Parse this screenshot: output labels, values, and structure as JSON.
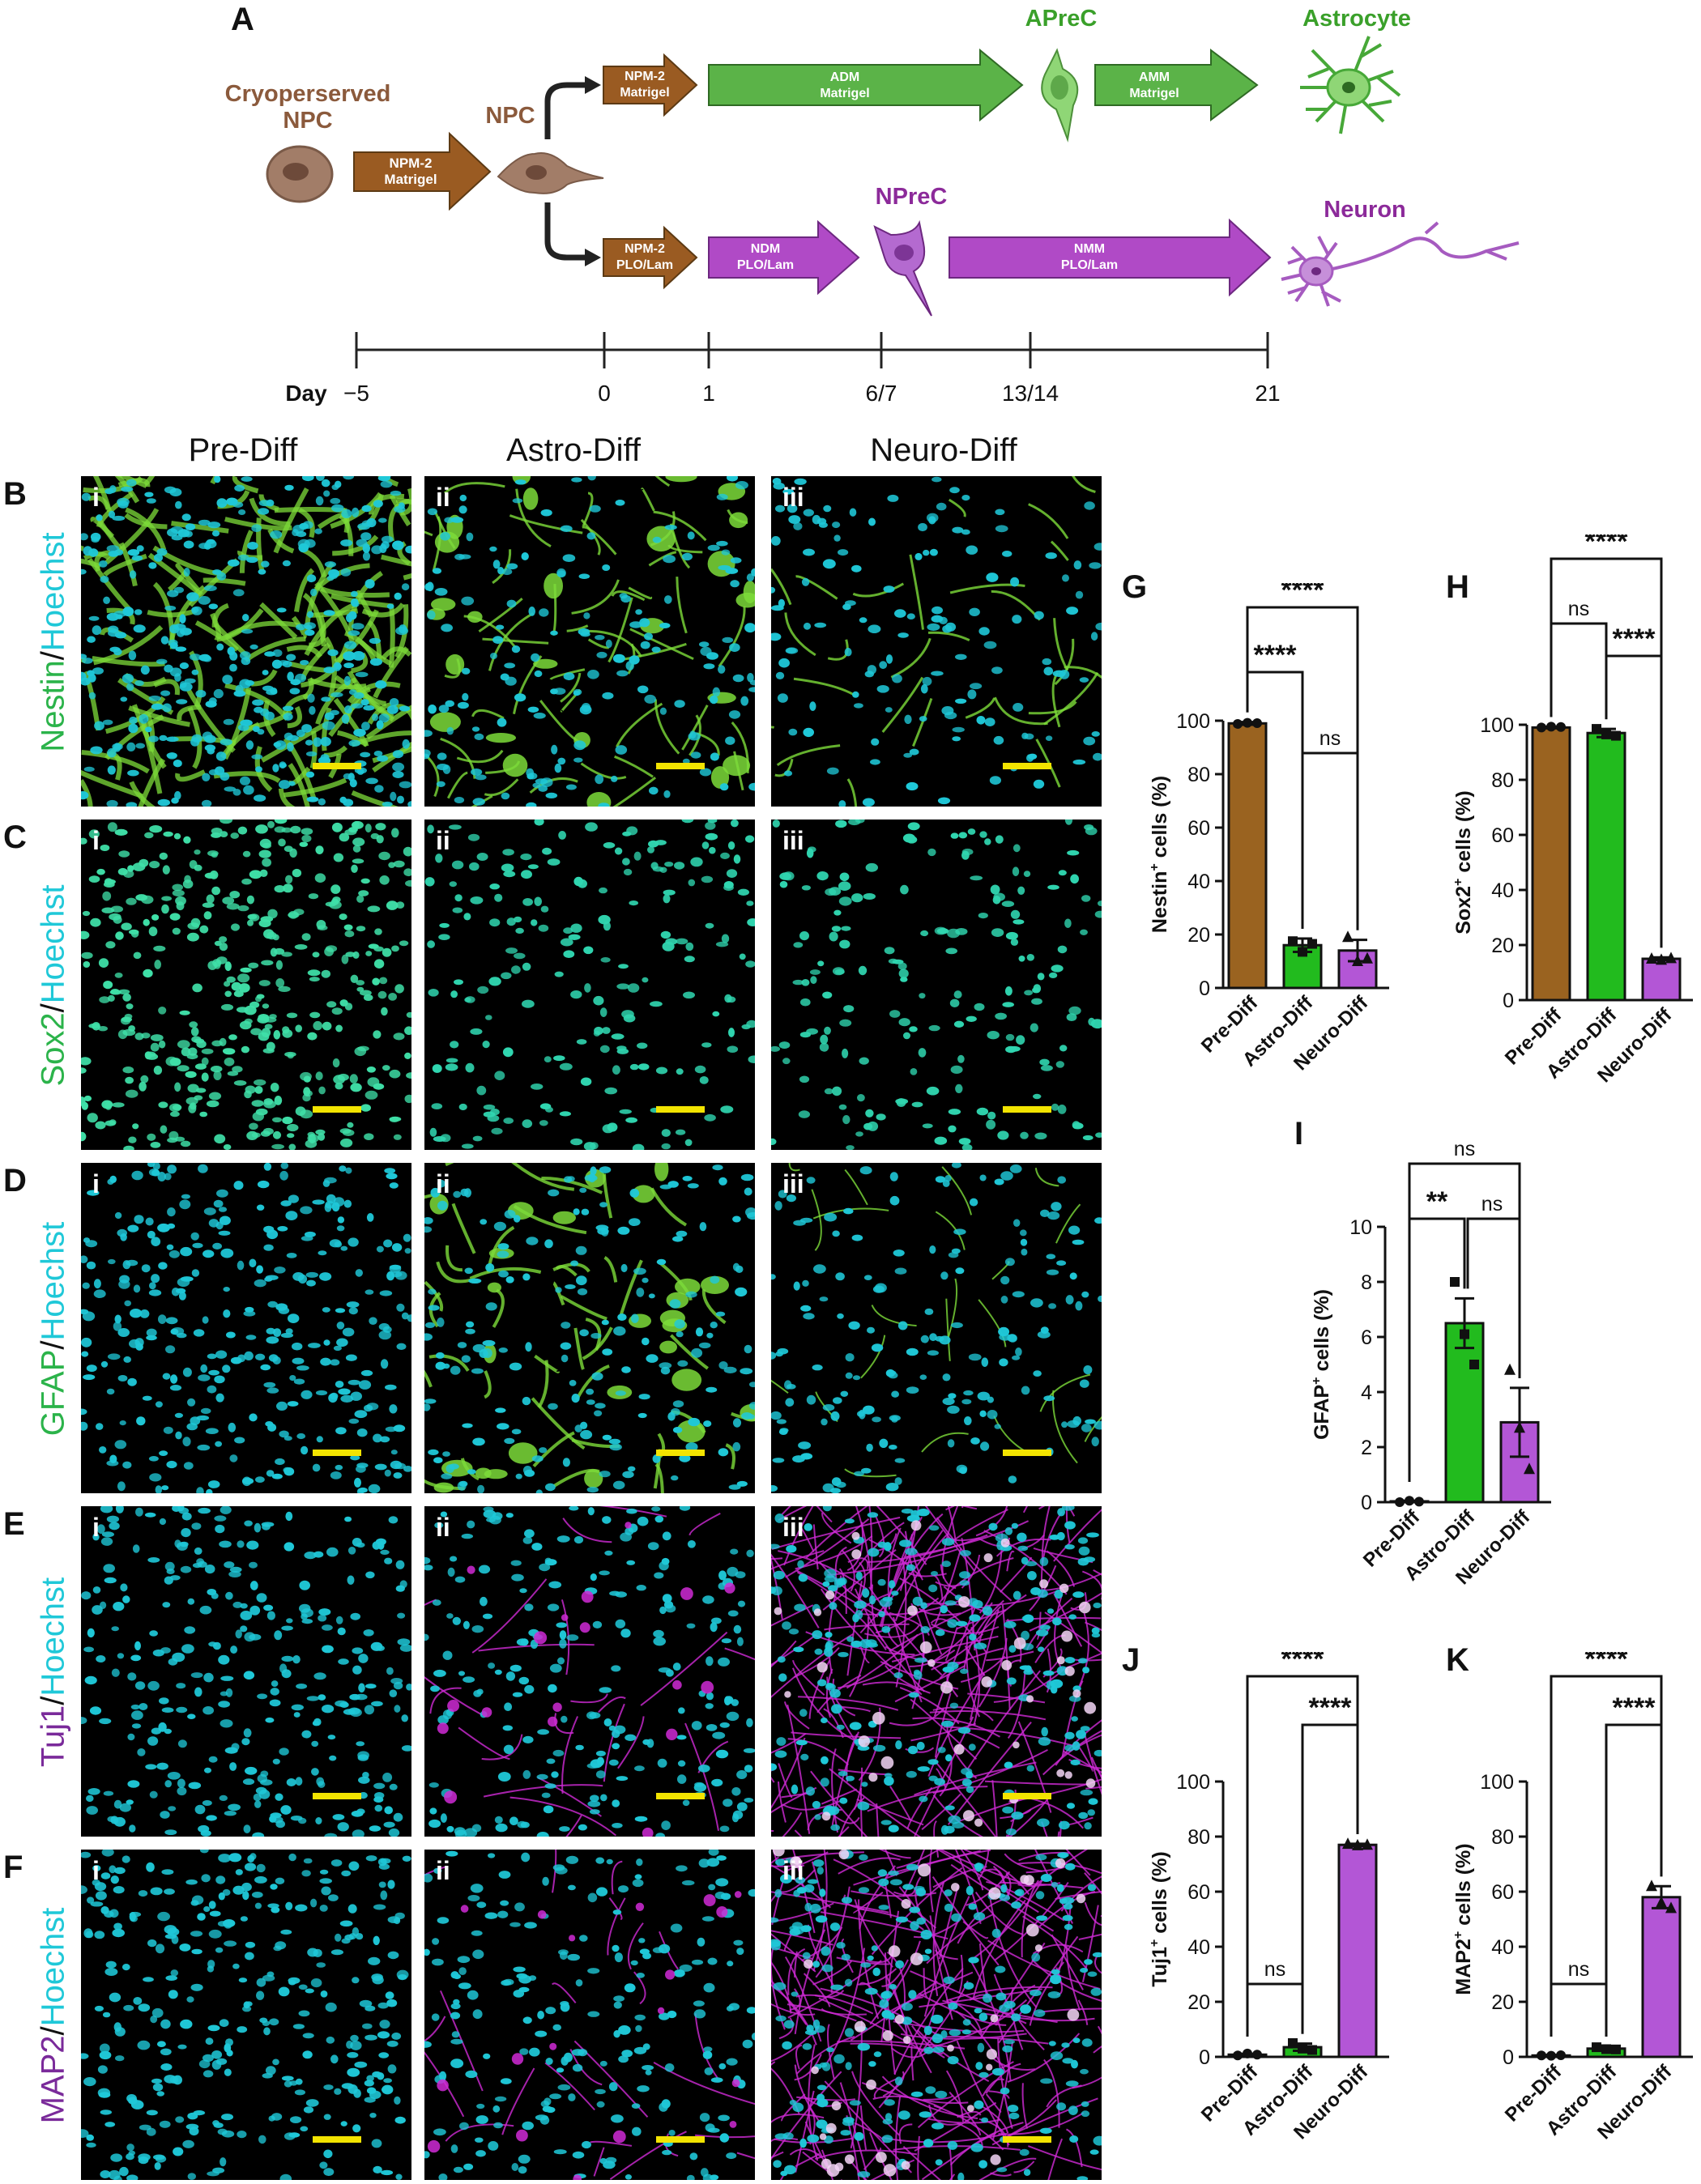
{
  "panel_letters": {
    "A": "A",
    "B": "B",
    "C": "C",
    "D": "D",
    "E": "E",
    "F": "F",
    "G": "G",
    "H": "H",
    "I": "I",
    "J": "J",
    "K": "K"
  },
  "schematic": {
    "cryo_label": [
      "Cryoperserved",
      "NPC"
    ],
    "npc_label": "NPC",
    "apre_label": "APreC",
    "astro_label": "Astrocyte",
    "npre_label": "NPreC",
    "neuron_label": "Neuron",
    "arrows": {
      "a0": [
        "NPM-2",
        "Matrigel"
      ],
      "a1": [
        "NPM-2",
        "Matrigel"
      ],
      "a2": [
        "ADM",
        "Matrigel"
      ],
      "a3": [
        "AMM",
        "Matrigel"
      ],
      "n1": [
        "NPM-2",
        "PLO/Lam"
      ],
      "n2": [
        "NDM",
        "PLO/Lam"
      ],
      "n3": [
        "NMM",
        "PLO/Lam"
      ]
    },
    "timeline_title": "Day",
    "timeline_ticks": [
      "−5",
      "0",
      "1",
      "6/7",
      "13/14",
      "21"
    ]
  },
  "columns": [
    "Pre-Diff",
    "Astro-Diff",
    "Neuro-Diff"
  ],
  "romans": [
    "i",
    "ii",
    "iii"
  ],
  "rows": [
    {
      "marker": "Nestin",
      "sep": "/",
      "stain": "Hoechst",
      "marker_color": "#2bb34a"
    },
    {
      "marker": "Sox2",
      "sep": "/",
      "stain": "Hoechst",
      "marker_color": "#2bb34a"
    },
    {
      "marker": "GFAP",
      "sep": "/",
      "stain": "Hoechst",
      "marker_color": "#2bb34a"
    },
    {
      "marker": "Tuj1",
      "sep": "/",
      "stain": "Hoechst",
      "marker_color": "#7a2a9a"
    },
    {
      "marker": "MAP2",
      "sep": "/",
      "stain": "Hoechst",
      "marker_color": "#7a2a9a"
    }
  ],
  "colors": {
    "hoechst": "#1fc8d8",
    "pre": "#9a6320",
    "astro": "#22bb1e",
    "neuro": "#b356d6",
    "scalebar": "#f3e400",
    "nestin_green": "#7ddc3a",
    "magenta": "#d02ad6"
  },
  "chart_data": [
    {
      "type": "bar",
      "panel": "G",
      "categories": [
        "Pre-Diff",
        "Astro-Diff",
        "Neuro-Diff"
      ],
      "values": [
        99,
        16,
        14
      ],
      "errors": [
        0.5,
        2.5,
        4
      ],
      "points": [
        [
          98.8,
          99.2,
          99.1
        ],
        [
          17.5,
          13.5,
          16.5
        ],
        [
          19,
          10,
          11
        ]
      ],
      "ylabel_main": "Nestin",
      "ylabel_sup": "+",
      "ylabel_rest": " cells (%)",
      "ylim": [
        0,
        100
      ],
      "yticks": [
        0,
        20,
        40,
        60,
        80,
        100
      ],
      "sig": [
        {
          "a": 0,
          "b": 2,
          "label": "****"
        },
        {
          "a": 0,
          "b": 1,
          "label": "****"
        },
        {
          "a": 1,
          "b": 2,
          "label": "ns"
        }
      ],
      "markers": [
        "circle",
        "square",
        "triangle"
      ]
    },
    {
      "type": "bar",
      "panel": "H",
      "categories": [
        "Pre-Diff",
        "Astro-Diff",
        "Neuro-Diff"
      ],
      "values": [
        99,
        97,
        15
      ],
      "errors": [
        0.3,
        1.5,
        0.5
      ],
      "points": [
        [
          99,
          99.3,
          99.2
        ],
        [
          98.5,
          96.5,
          96
        ],
        [
          15,
          14.6,
          15.2
        ]
      ],
      "ylabel_main": "Sox2",
      "ylabel_sup": "+",
      "ylabel_rest": " cells (%)",
      "ylim": [
        0,
        100
      ],
      "yticks": [
        0,
        20,
        40,
        60,
        80,
        100
      ],
      "sig": [
        {
          "a": 0,
          "b": 2,
          "label": "****"
        },
        {
          "a": 0,
          "b": 1,
          "label": "ns"
        },
        {
          "a": 1,
          "b": 2,
          "label": "****"
        }
      ],
      "markers": [
        "circle",
        "square",
        "triangle"
      ]
    },
    {
      "type": "bar",
      "panel": "I",
      "categories": [
        "Pre-Diff",
        "Astro-Diff",
        "Neuro-Diff"
      ],
      "values": [
        0.03,
        6.5,
        2.9
      ],
      "errors": [
        0.02,
        0.9,
        1.25
      ],
      "points": [
        [
          0,
          0.05,
          0.02
        ],
        [
          8,
          6.1,
          5
        ],
        [
          4.8,
          2.7,
          1.2
        ]
      ],
      "ylabel_main": "GFAP",
      "ylabel_sup": "+",
      "ylabel_rest": " cells (%)",
      "ylim": [
        0,
        10
      ],
      "yticks": [
        0,
        2,
        4,
        6,
        8,
        10
      ],
      "sig": [
        {
          "a": 0,
          "b": 2,
          "label": "ns"
        },
        {
          "a": 0,
          "b": 1,
          "label": "**"
        },
        {
          "a": 1,
          "b": 2,
          "label": "ns"
        }
      ],
      "markers": [
        "circle",
        "square",
        "triangle"
      ]
    },
    {
      "type": "bar",
      "panel": "J",
      "categories": [
        "Pre-Diff",
        "Astro-Diff",
        "Neuro-Diff"
      ],
      "values": [
        0.8,
        3.5,
        77
      ],
      "errors": [
        0.3,
        1.3,
        0.4
      ],
      "points": [
        [
          0.5,
          1.2,
          0.8
        ],
        [
          5,
          3,
          2.5
        ],
        [
          77.3,
          76.8,
          77
        ]
      ],
      "ylabel_main": "Tuj1",
      "ylabel_sup": "+",
      "ylabel_rest": " cells (%)",
      "ylim": [
        0,
        100
      ],
      "yticks": [
        0,
        20,
        40,
        60,
        80,
        100
      ],
      "sig": [
        {
          "a": 0,
          "b": 2,
          "label": "****"
        },
        {
          "a": 1,
          "b": 2,
          "label": "****"
        },
        {
          "a": 0,
          "b": 1,
          "label": "ns"
        }
      ],
      "markers": [
        "circle",
        "square",
        "triangle"
      ]
    },
    {
      "type": "bar",
      "panel": "K",
      "categories": [
        "Pre-Diff",
        "Astro-Diff",
        "Neuro-Diff"
      ],
      "values": [
        0.5,
        3,
        58
      ],
      "errors": [
        0.2,
        0.8,
        4
      ],
      "points": [
        [
          0.5,
          0.4,
          0.6
        ],
        [
          3.5,
          2.8,
          2.7
        ],
        [
          62,
          56,
          54
        ]
      ],
      "ylabel_main": "MAP2",
      "ylabel_sup": "+",
      "ylabel_rest": " cells (%)",
      "ylim": [
        0,
        100
      ],
      "yticks": [
        0,
        20,
        40,
        60,
        80,
        100
      ],
      "sig": [
        {
          "a": 0,
          "b": 2,
          "label": "****"
        },
        {
          "a": 1,
          "b": 2,
          "label": "****"
        },
        {
          "a": 0,
          "b": 1,
          "label": "ns"
        }
      ],
      "markers": [
        "circle",
        "square",
        "triangle"
      ]
    }
  ]
}
